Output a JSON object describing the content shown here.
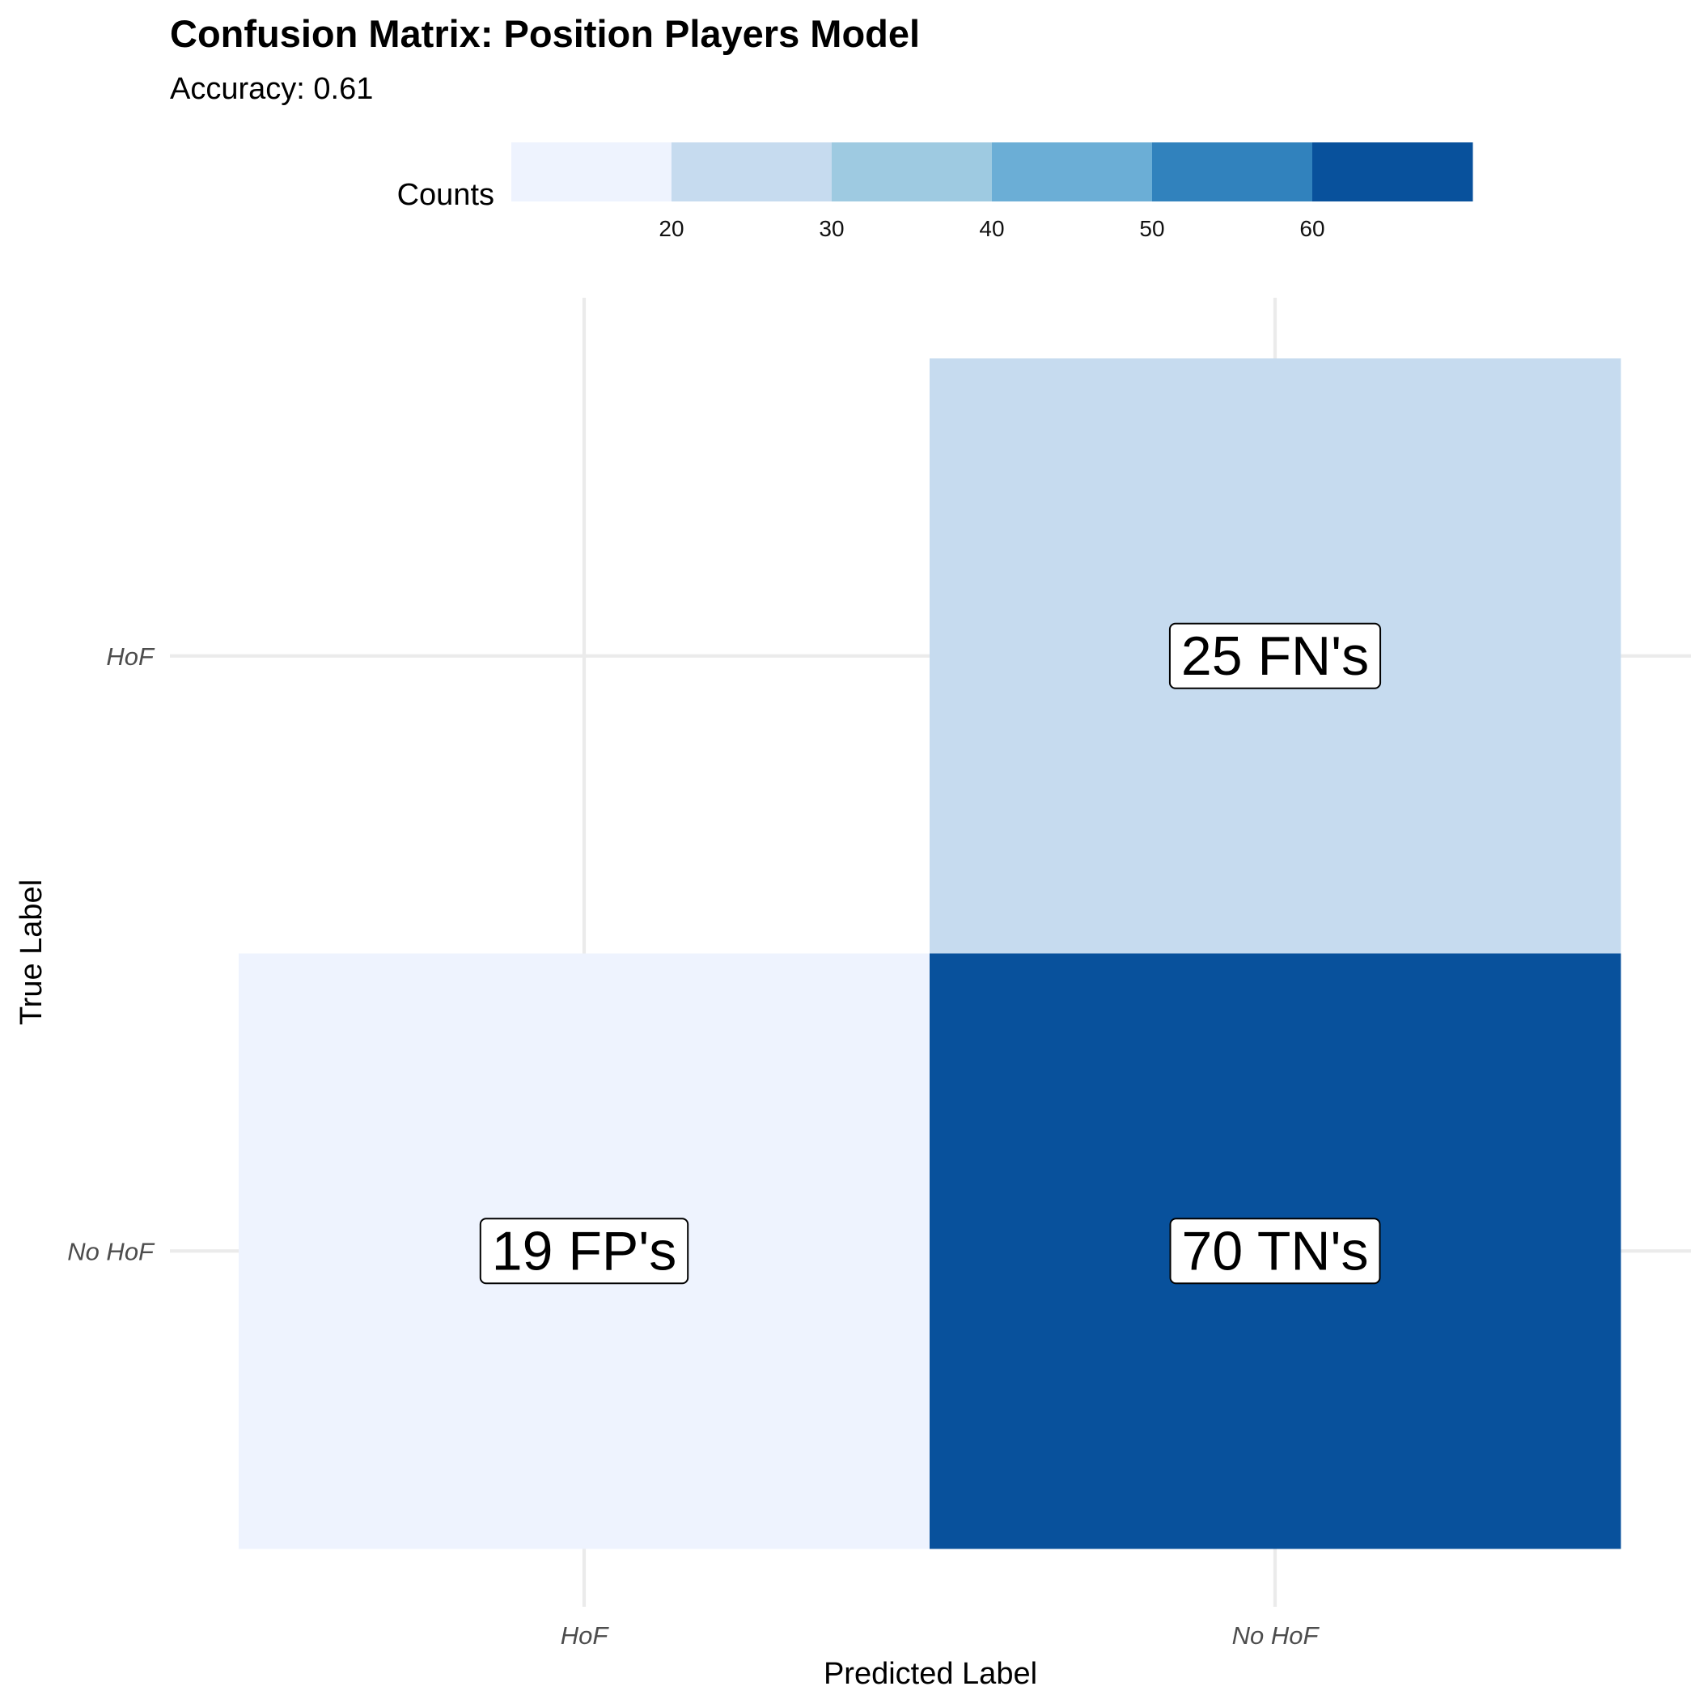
{
  "chart_data": {
    "type": "heatmap",
    "title": "Confusion Matrix: Position Players Model",
    "subtitle": "Accuracy: 0.61",
    "xlabel": "Predicted Label",
    "ylabel": "True Label",
    "x_categories": [
      "HoF",
      "No HoF"
    ],
    "y_categories": [
      "HoF",
      "No HoF"
    ],
    "cells": [
      {
        "predicted": "No HoF",
        "true": "HoF",
        "value": 25,
        "label": "25 FN's"
      },
      {
        "predicted": "HoF",
        "true": "No HoF",
        "value": 19,
        "label": "19 FP's"
      },
      {
        "predicted": "No HoF",
        "true": "No HoF",
        "value": 70,
        "label": "70 TN's"
      }
    ],
    "legend": {
      "title": "Counts",
      "position": "top",
      "range": [
        10,
        70
      ],
      "bins": [
        {
          "min": 10,
          "max": 20,
          "color": "#eef3fe"
        },
        {
          "min": 20,
          "max": 30,
          "color": "#c6dbef"
        },
        {
          "min": 30,
          "max": 40,
          "color": "#9ecae1"
        },
        {
          "min": 40,
          "max": 50,
          "color": "#6baed6"
        },
        {
          "min": 50,
          "max": 60,
          "color": "#3182bd"
        },
        {
          "min": 60,
          "max": 70,
          "color": "#08519c"
        }
      ],
      "breaks": [
        20,
        30,
        40,
        50,
        60
      ]
    },
    "grid": true
  }
}
